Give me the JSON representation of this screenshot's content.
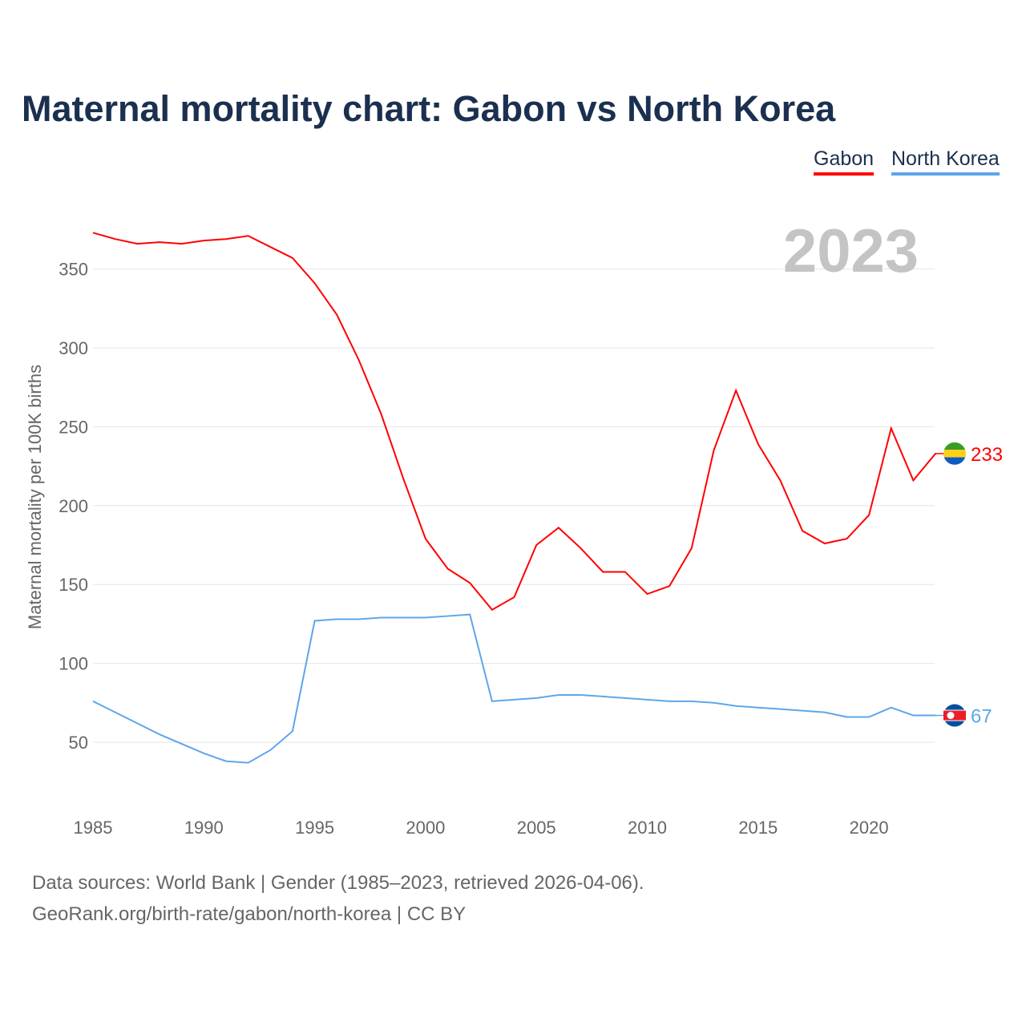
{
  "title": "Maternal mortality chart: Gabon vs North Korea",
  "year_label": "2023",
  "legend": [
    {
      "label": "Gabon",
      "color": "#ff0000"
    },
    {
      "label": "North Korea",
      "color": "#5ea6ea"
    }
  ],
  "footer": {
    "line1": "Data sources: World Bank | Gender (1985–2023, retrieved 2026-04-06).",
    "line2": "GeoRank.org/birth-rate/gabon/north-korea | CC BY"
  },
  "chart_data": {
    "type": "line",
    "title": "Maternal mortality chart: Gabon vs North Korea",
    "xlabel": "",
    "ylabel": "Maternal mortality per 100K births",
    "xlim": [
      1985,
      2023
    ],
    "ylim": [
      0,
      375
    ],
    "yticks": [
      50,
      100,
      150,
      200,
      250,
      300,
      350
    ],
    "xticks": [
      1985,
      1990,
      1995,
      2000,
      2005,
      2010,
      2015,
      2020
    ],
    "grid": true,
    "legend_position": "top-right",
    "x": [
      1985,
      1986,
      1987,
      1988,
      1989,
      1990,
      1991,
      1992,
      1993,
      1994,
      1995,
      1996,
      1997,
      1998,
      1999,
      2000,
      2001,
      2002,
      2003,
      2004,
      2005,
      2006,
      2007,
      2008,
      2009,
      2010,
      2011,
      2012,
      2013,
      2014,
      2015,
      2016,
      2017,
      2018,
      2019,
      2020,
      2021,
      2022,
      2023
    ],
    "series": [
      {
        "name": "Gabon",
        "color": "#ff0000",
        "end_label": "233",
        "values": [
          373,
          369,
          366,
          367,
          366,
          368,
          369,
          371,
          364,
          357,
          341,
          321,
          292,
          258,
          217,
          179,
          160,
          151,
          134,
          142,
          175,
          186,
          173,
          158,
          158,
          144,
          149,
          173,
          235,
          273,
          239,
          216,
          184,
          176,
          179,
          194,
          249,
          216,
          233
        ]
      },
      {
        "name": "North Korea",
        "color": "#5ea6ea",
        "end_label": "67",
        "values": [
          76,
          69,
          62,
          55,
          49,
          43,
          38,
          37,
          45,
          57,
          127,
          128,
          128,
          129,
          129,
          129,
          130,
          131,
          76,
          77,
          78,
          80,
          80,
          79,
          78,
          77,
          76,
          76,
          75,
          73,
          72,
          71,
          70,
          69,
          66,
          66,
          72,
          67,
          67
        ]
      }
    ]
  }
}
